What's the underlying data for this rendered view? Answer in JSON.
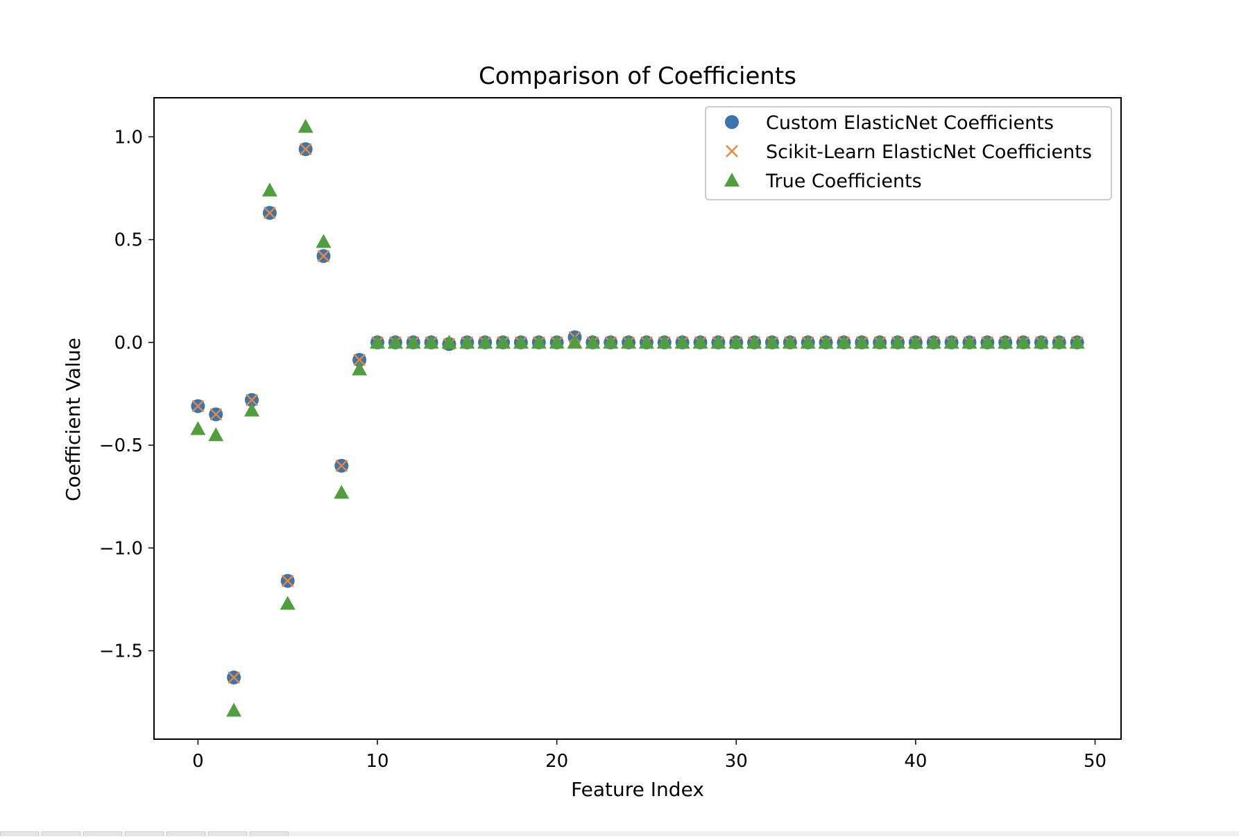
{
  "chart_data": {
    "type": "scatter",
    "title": "Comparison of Coefficients",
    "xlabel": "Feature Index",
    "ylabel": "Coefficient Value",
    "xlim": [
      -2.45,
      51.45
    ],
    "ylim": [
      -1.93,
      1.19
    ],
    "xticks": [
      0,
      10,
      20,
      30,
      40,
      50
    ],
    "xtick_labels": [
      "0",
      "10",
      "20",
      "30",
      "40",
      "50"
    ],
    "yticks": [
      1.0,
      0.5,
      0.0,
      -0.5,
      -1.0,
      -1.5
    ],
    "ytick_labels": [
      "1.0",
      "0.5",
      "0.0",
      "−0.5",
      "−1.0",
      "−1.5"
    ],
    "grid": false,
    "legend_position": "top-right",
    "x": [
      0,
      1,
      2,
      3,
      4,
      5,
      6,
      7,
      8,
      9,
      10,
      11,
      12,
      13,
      14,
      15,
      16,
      17,
      18,
      19,
      20,
      21,
      22,
      23,
      24,
      25,
      26,
      27,
      28,
      29,
      30,
      31,
      32,
      33,
      34,
      35,
      36,
      37,
      38,
      39,
      40,
      41,
      42,
      43,
      44,
      45,
      46,
      47,
      48,
      49
    ],
    "series": [
      {
        "name": "Custom ElasticNet Coefficients",
        "marker": "circle",
        "color": "#3b75af",
        "values": [
          -0.31,
          -0.35,
          -1.63,
          -0.28,
          0.63,
          -1.16,
          0.94,
          0.42,
          -0.6,
          -0.085,
          0,
          0,
          0,
          0,
          -0.008,
          0,
          0,
          0,
          0,
          0,
          0,
          0.025,
          0,
          0,
          0,
          0,
          0,
          0,
          0,
          0,
          0,
          0,
          0,
          0,
          0,
          0,
          0,
          0,
          0,
          0,
          0,
          0,
          0,
          0,
          0,
          0,
          0,
          0,
          0,
          0
        ]
      },
      {
        "name": "Scikit-Learn ElasticNet Coefficients",
        "marker": "x",
        "color": "#ef8636",
        "values": [
          -0.31,
          -0.35,
          -1.63,
          -0.28,
          0.63,
          -1.16,
          0.94,
          0.42,
          -0.6,
          -0.085,
          0,
          0,
          0,
          0,
          -0.008,
          0,
          0,
          0,
          0,
          0,
          0,
          0.025,
          0,
          0,
          0,
          0,
          0,
          0,
          0,
          0,
          0,
          0,
          0,
          0,
          0,
          0,
          0,
          0,
          0,
          0,
          0,
          0,
          0,
          0,
          0,
          0,
          0,
          0,
          0,
          0
        ]
      },
      {
        "name": "True Coefficients",
        "marker": "triangle",
        "color": "#519e3e",
        "values": [
          -0.42,
          -0.45,
          -1.79,
          -0.33,
          0.74,
          -1.27,
          1.05,
          0.49,
          -0.73,
          -0.13,
          0,
          0,
          0,
          0,
          0,
          0,
          0,
          0,
          0,
          0,
          0,
          0,
          0,
          0,
          0,
          0,
          0,
          0,
          0,
          0,
          0,
          0,
          0,
          0,
          0,
          0,
          0,
          0,
          0,
          0,
          0,
          0,
          0,
          0,
          0,
          0,
          0,
          0,
          0,
          0
        ]
      }
    ]
  }
}
